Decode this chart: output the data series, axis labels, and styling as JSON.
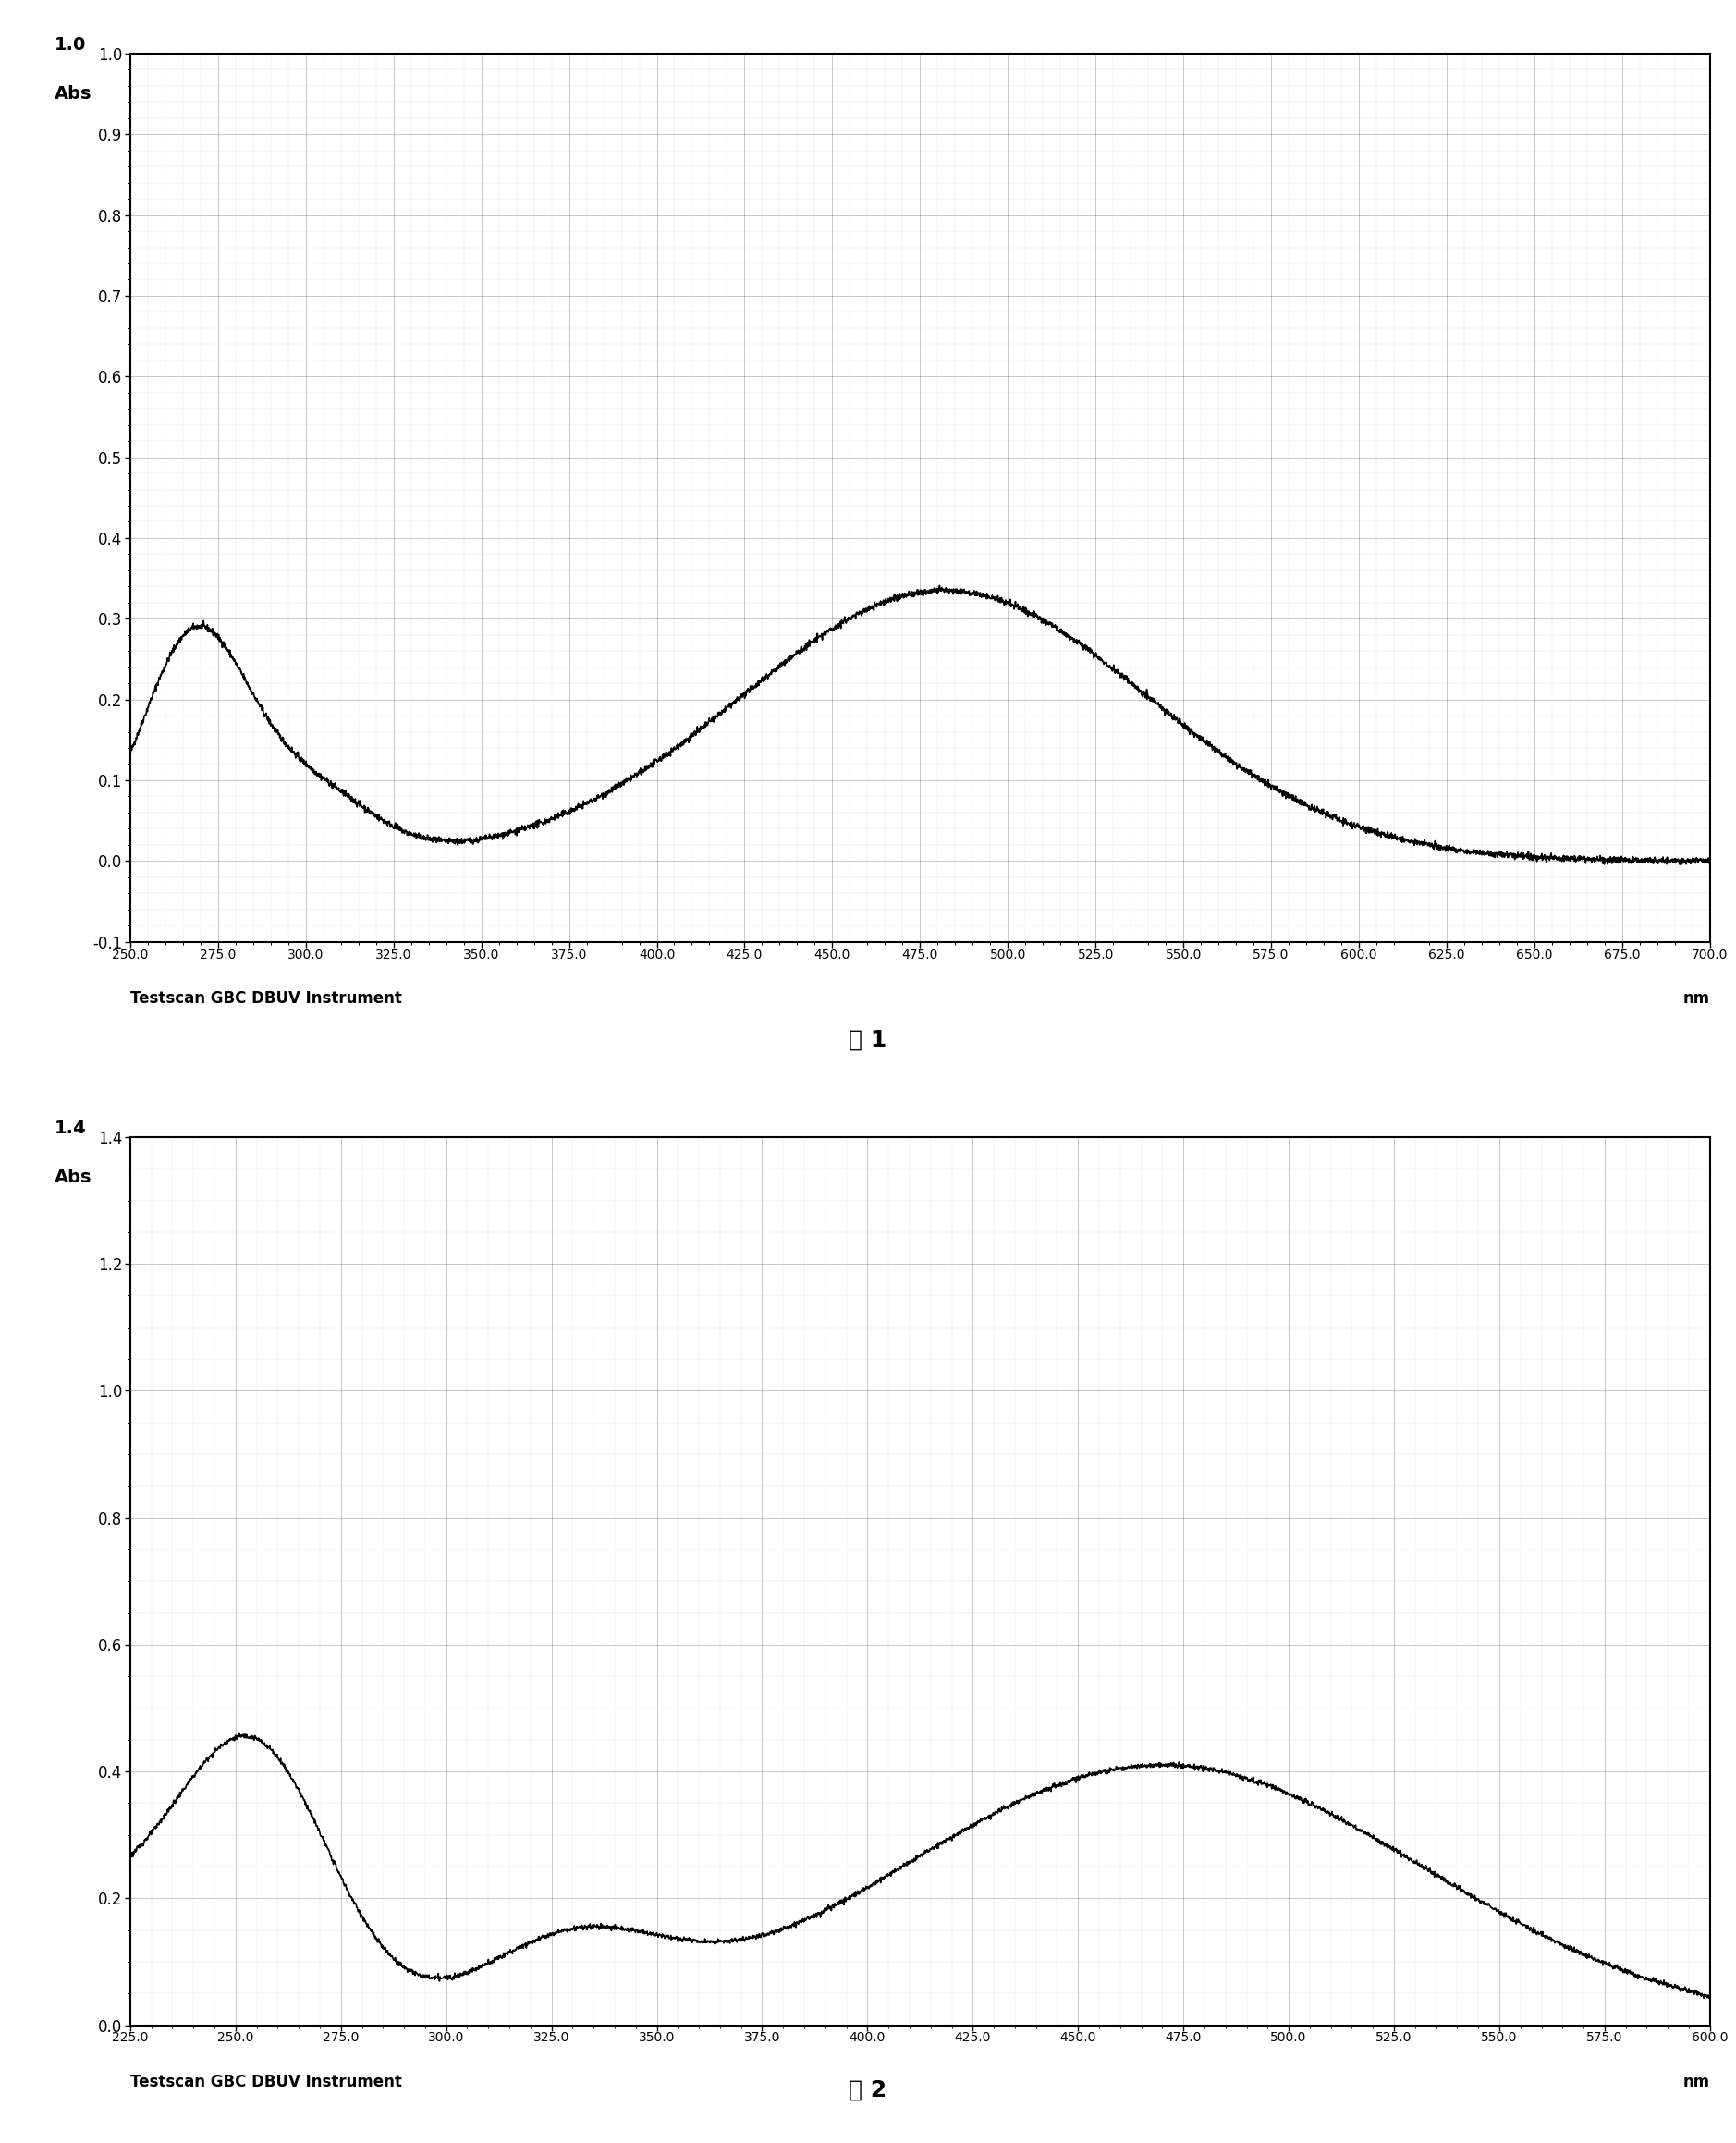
{
  "fig1": {
    "title": "图 1",
    "xlabel_left": "Testscan GBC DBUV Instrument",
    "xlabel_right": "nm",
    "ylabel": "Abs",
    "xmin": 250.0,
    "xmax": 700.0,
    "ymin": -0.1,
    "ymax": 1.0,
    "yticks": [
      -0.1,
      0.0,
      0.1,
      0.2,
      0.3,
      0.4,
      0.5,
      0.6,
      0.7,
      0.8,
      0.9,
      1.0
    ],
    "xtick_start": 250.0,
    "xtick_step": 25.0,
    "bg_color": "#ffffff",
    "line_color": "#000000",
    "grid_color": "#666666",
    "minor_grid_color": "#aaaaaa"
  },
  "fig2": {
    "title": "图 2",
    "xlabel_left": "Testscan GBC DBUV Instrument",
    "xlabel_right": "nm",
    "ylabel": "Abs",
    "xmin": 225.0,
    "xmax": 600.0,
    "ymin": 0.0,
    "ymax": 1.4,
    "yticks": [
      0.0,
      0.2,
      0.4,
      0.6,
      0.8,
      1.0,
      1.2,
      1.4
    ],
    "xtick_start": 225.0,
    "xtick_step": 25.0,
    "bg_color": "#ffffff",
    "line_color": "#000000",
    "grid_color": "#666666",
    "minor_grid_color": "#aaaaaa"
  }
}
